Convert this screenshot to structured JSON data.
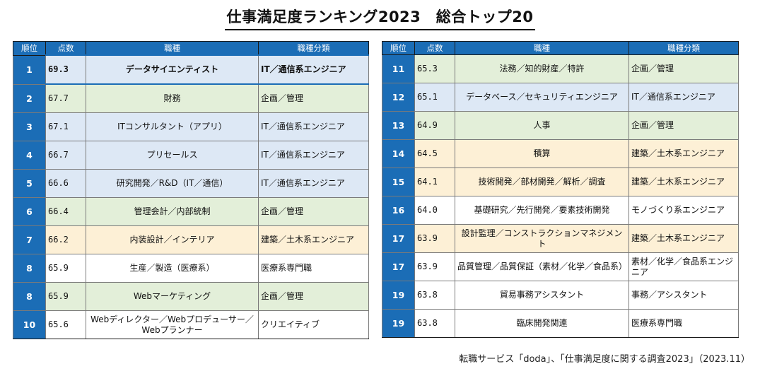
{
  "title": "仕事満足度ランキング2023　総合トップ20",
  "headers": {
    "rank": "順位",
    "score": "点数",
    "job": "職種",
    "category": "職種分類"
  },
  "left_rows": [
    {
      "rank": "1",
      "score": "69.3",
      "job": "データサイエンティスト",
      "category": "IT／通信系エンジニア",
      "color": "top",
      "bold": true
    },
    {
      "rank": "2",
      "score": "67.7",
      "job": "財務",
      "category": "企画／管理",
      "color": "green",
      "bold": false
    },
    {
      "rank": "3",
      "score": "67.1",
      "job": "ITコンサルタント（アプリ）",
      "category": "IT／通信系エンジニア",
      "color": "blue",
      "bold": false
    },
    {
      "rank": "4",
      "score": "66.7",
      "job": "プリセールス",
      "category": "IT／通信系エンジニア",
      "color": "blue",
      "bold": false
    },
    {
      "rank": "5",
      "score": "66.6",
      "job": "研究開発／R&D（IT／通信）",
      "category": "IT／通信系エンジニア",
      "color": "blue",
      "bold": false
    },
    {
      "rank": "6",
      "score": "66.4",
      "job": "管理会計／内部統制",
      "category": "企画／管理",
      "color": "green",
      "bold": false
    },
    {
      "rank": "7",
      "score": "66.2",
      "job": "内装設計／インテリア",
      "category": "建築／土木系エンジニア",
      "color": "orange",
      "bold": false
    },
    {
      "rank": "8",
      "score": "65.9",
      "job": "生産／製造（医療系）",
      "category": "医療系専門職",
      "color": "white",
      "bold": false
    },
    {
      "rank": "8",
      "score": "65.9",
      "job": "Webマーケティング",
      "category": "企画／管理",
      "color": "green",
      "bold": false
    },
    {
      "rank": "10",
      "score": "65.6",
      "job": "Webディレクター／Webプロデューサー／Webプランナー",
      "category": "クリエイティブ",
      "color": "white",
      "bold": false
    }
  ],
  "right_rows": [
    {
      "rank": "11",
      "score": "65.3",
      "job": "法務／知的財産／特許",
      "category": "企画／管理",
      "color": "green",
      "bold": false
    },
    {
      "rank": "12",
      "score": "65.1",
      "job": "データベース／セキュリティエンジニア",
      "category": "IT／通信系エンジニア",
      "color": "blue",
      "bold": false
    },
    {
      "rank": "13",
      "score": "64.9",
      "job": "人事",
      "category": "企画／管理",
      "color": "green",
      "bold": false
    },
    {
      "rank": "14",
      "score": "64.5",
      "job": "積算",
      "category": "建築／土木系エンジニア",
      "color": "orange",
      "bold": false
    },
    {
      "rank": "15",
      "score": "64.1",
      "job": "技術開発／部材開発／解析／調査",
      "category": "建築／土木系エンジニア",
      "color": "orange",
      "bold": false
    },
    {
      "rank": "16",
      "score": "64.0",
      "job": "基礎研究／先行開発／要素技術開発",
      "category": "モノづくり系エンジニア",
      "color": "white",
      "bold": false
    },
    {
      "rank": "17",
      "score": "63.9",
      "job": "設計監理／コンストラクションマネジメント",
      "category": "建築／土木系エンジニア",
      "color": "orange",
      "bold": false
    },
    {
      "rank": "17",
      "score": "63.9",
      "job": "品質管理／品質保証（素材／化学／食品系）",
      "category": "素材／化学／食品系エンジニア",
      "color": "white",
      "bold": false
    },
    {
      "rank": "19",
      "score": "63.8",
      "job": "貿易事務アシスタント",
      "category": "事務／アシスタント",
      "color": "white",
      "bold": false
    },
    {
      "rank": "19",
      "score": "63.8",
      "job": "臨床開発関連",
      "category": "医療系専門職",
      "color": "white",
      "bold": false
    }
  ],
  "source": "転職サービス「doda」、「仕事満足度に関する調査2023」（2023.11）"
}
